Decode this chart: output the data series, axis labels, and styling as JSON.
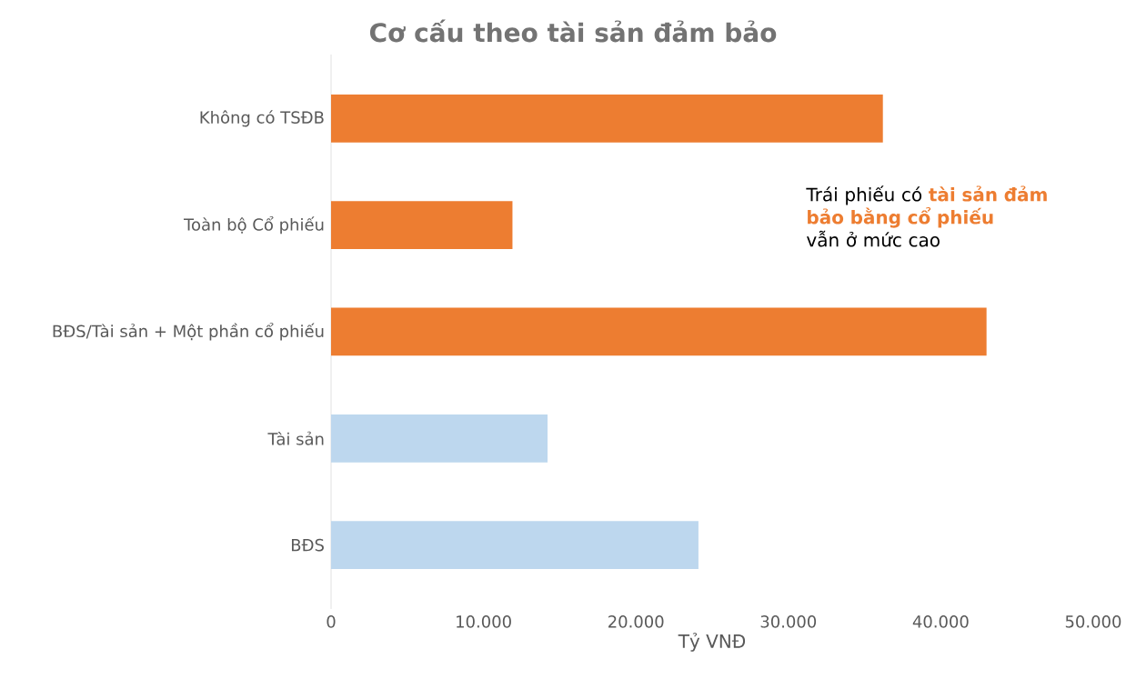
{
  "chart_data": {
    "type": "bar",
    "orientation": "horizontal",
    "title": "Cơ cấu theo tài sản đảm bảo",
    "xlabel": "Tỷ VNĐ",
    "categories": [
      "Không có TSĐB",
      "Toàn bộ Cổ phiếu",
      "BĐS/Tài sản + Một phần cổ phiếu",
      "Tài sản",
      "BĐS"
    ],
    "values": [
      36200,
      11900,
      43000,
      14200,
      24100
    ],
    "colors": [
      "#ed7d31",
      "#ed7d31",
      "#ed7d31",
      "#bdd7ee",
      "#bdd7ee"
    ],
    "xlim": [
      0,
      50000
    ],
    "xticks": [
      0,
      {
        "value": 10000,
        "label": "10.000"
      },
      {
        "value": 20000,
        "label": "20.000"
      },
      {
        "value": 30000,
        "label": "30.000"
      },
      {
        "value": 40000,
        "label": "40.000"
      },
      {
        "value": 50000,
        "label": "50.000"
      }
    ],
    "annotations": [
      "Trái phiếu có",
      "tài sản đảm bảo bằng cổ phiếu",
      "vẫn ở mức cao"
    ],
    "grid": false
  }
}
